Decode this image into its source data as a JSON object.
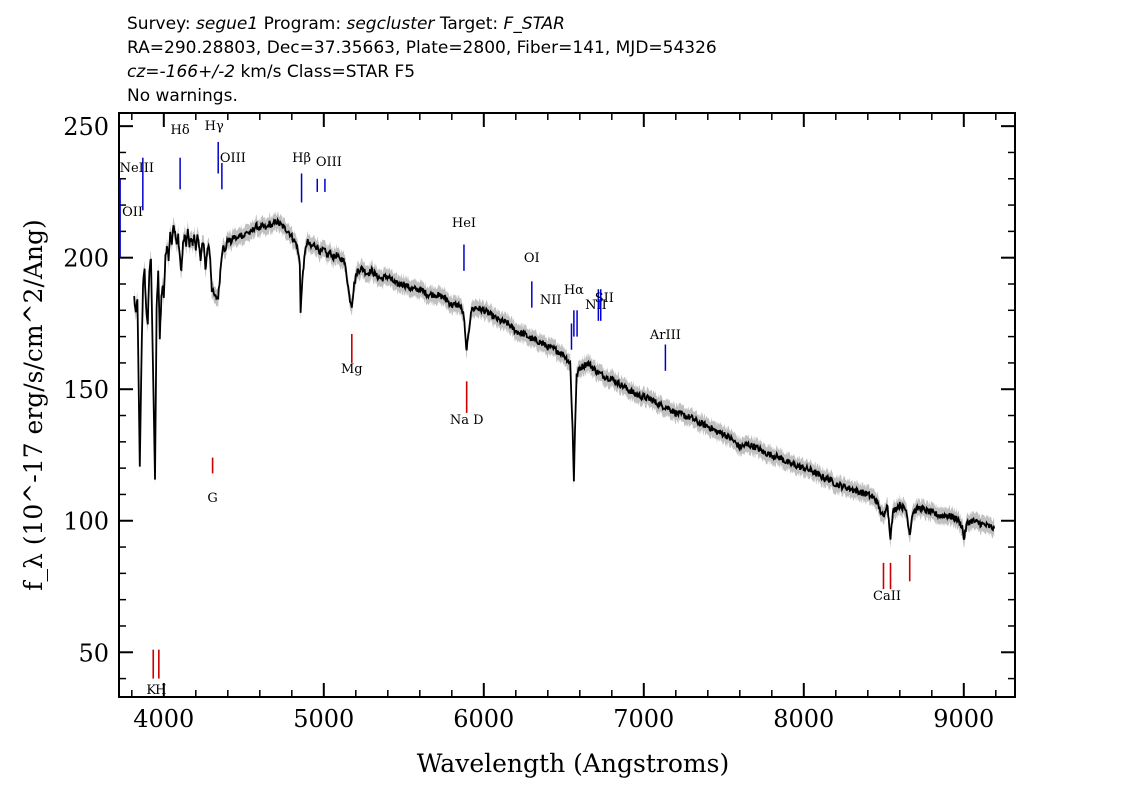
{
  "header": {
    "line1": {
      "survey_label": "Survey:",
      "survey": "segue1",
      "program_label": "Program:",
      "program": "segcluster",
      "target_label": "Target:",
      "target": "F_STAR"
    },
    "line2": "RA=290.28803, Dec=37.35663, Plate=2800, Fiber=141, MJD=54326",
    "line3": {
      "cz_label": "cz=",
      "cz_value": "-166+/-2",
      "unit_class": "km/s Class=STAR F5"
    },
    "line4": "No warnings."
  },
  "chart_data": {
    "type": "line",
    "xlabel": "Wavelength (Angstroms)",
    "ylabel": "f_λ (10^-17 erg/s/cm^2/Ang)",
    "xlim": [
      3720,
      9320
    ],
    "ylim": [
      33,
      255
    ],
    "x_ticks": [
      4000,
      5000,
      6000,
      7000,
      8000,
      9000
    ],
    "y_ticks": [
      50,
      100,
      150,
      200,
      250
    ],
    "x_tick_labels": [
      "4000",
      "5000",
      "6000",
      "7000",
      "8000",
      "9000"
    ],
    "y_tick_labels": [
      "50",
      "100",
      "150",
      "200",
      "250"
    ],
    "colors": {
      "spectrum": "#000000",
      "error_band": "#c0c0c0",
      "emission": "#0000cc",
      "absorption": "#cc0000"
    },
    "series": [
      {
        "points": [
          [
            3815,
            185
          ],
          [
            3825,
            178
          ],
          [
            3835,
            185
          ],
          [
            3850,
            120
          ],
          [
            3860,
            160
          ],
          [
            3870,
            190
          ],
          [
            3880,
            195
          ],
          [
            3890,
            180
          ],
          [
            3900,
            175
          ],
          [
            3910,
            195
          ],
          [
            3920,
            200
          ],
          [
            3935,
            150
          ],
          [
            3945,
            115
          ],
          [
            3955,
            180
          ],
          [
            3965,
            195
          ],
          [
            3975,
            170
          ],
          [
            3985,
            185
          ],
          [
            3995,
            190
          ],
          [
            4000,
            185
          ],
          [
            4010,
            200
          ],
          [
            4020,
            205
          ],
          [
            4030,
            200
          ],
          [
            4040,
            210
          ],
          [
            4050,
            205
          ],
          [
            4060,
            212
          ],
          [
            4070,
            210
          ],
          [
            4080,
            205
          ],
          [
            4090,
            208
          ],
          [
            4100,
            200
          ],
          [
            4110,
            195
          ],
          [
            4120,
            205
          ],
          [
            4130,
            208
          ],
          [
            4140,
            205
          ],
          [
            4150,
            210
          ],
          [
            4160,
            205
          ],
          [
            4170,
            208
          ],
          [
            4180,
            205
          ],
          [
            4190,
            208
          ],
          [
            4200,
            204
          ],
          [
            4210,
            208
          ],
          [
            4220,
            204
          ],
          [
            4230,
            200
          ],
          [
            4240,
            205
          ],
          [
            4250,
            205
          ],
          [
            4260,
            195
          ],
          [
            4270,
            202
          ],
          [
            4280,
            205
          ],
          [
            4290,
            200
          ],
          [
            4300,
            188
          ],
          [
            4320,
            185
          ],
          [
            4340,
            185
          ],
          [
            4350,
            192
          ],
          [
            4360,
            200
          ],
          [
            4370,
            205
          ],
          [
            4380,
            202
          ],
          [
            4400,
            207
          ],
          [
            4420,
            206
          ],
          [
            4440,
            208
          ],
          [
            4460,
            207
          ],
          [
            4480,
            209
          ],
          [
            4500,
            208
          ],
          [
            4520,
            210
          ],
          [
            4540,
            209
          ],
          [
            4560,
            211
          ],
          [
            4580,
            212
          ],
          [
            4600,
            211
          ],
          [
            4620,
            212
          ],
          [
            4640,
            211
          ],
          [
            4660,
            213
          ],
          [
            4680,
            212
          ],
          [
            4700,
            214
          ],
          [
            4720,
            213
          ],
          [
            4740,
            212
          ],
          [
            4760,
            211
          ],
          [
            4780,
            210
          ],
          [
            4800,
            208
          ],
          [
            4830,
            205
          ],
          [
            4850,
            198
          ],
          [
            4855,
            180
          ],
          [
            4870,
            195
          ],
          [
            4890,
            205
          ],
          [
            4900,
            206
          ],
          [
            4920,
            204
          ],
          [
            4940,
            205
          ],
          [
            4960,
            204
          ],
          [
            4980,
            202
          ],
          [
            5000,
            203
          ],
          [
            5020,
            201
          ],
          [
            5040,
            202
          ],
          [
            5060,
            200
          ],
          [
            5080,
            201
          ],
          [
            5100,
            199
          ],
          [
            5120,
            200
          ],
          [
            5140,
            195
          ],
          [
            5160,
            185
          ],
          [
            5175,
            182
          ],
          [
            5190,
            190
          ],
          [
            5210,
            195
          ],
          [
            5240,
            196
          ],
          [
            5270,
            194
          ],
          [
            5300,
            195
          ],
          [
            5330,
            193
          ],
          [
            5360,
            192
          ],
          [
            5400,
            193
          ],
          [
            5450,
            190
          ],
          [
            5500,
            190
          ],
          [
            5550,
            188
          ],
          [
            5600,
            188
          ],
          [
            5650,
            186
          ],
          [
            5700,
            186
          ],
          [
            5750,
            185
          ],
          [
            5800,
            182
          ],
          [
            5850,
            182
          ],
          [
            5875,
            178
          ],
          [
            5890,
            165
          ],
          [
            5900,
            168
          ],
          [
            5920,
            180
          ],
          [
            5950,
            181
          ],
          [
            6000,
            180
          ],
          [
            6050,
            178
          ],
          [
            6100,
            176
          ],
          [
            6150,
            175
          ],
          [
            6200,
            172
          ],
          [
            6250,
            171
          ],
          [
            6300,
            169
          ],
          [
            6350,
            168
          ],
          [
            6400,
            166
          ],
          [
            6450,
            165
          ],
          [
            6500,
            163
          ],
          [
            6540,
            160
          ],
          [
            6555,
            135
          ],
          [
            6563,
            115
          ],
          [
            6570,
            135
          ],
          [
            6580,
            155
          ],
          [
            6600,
            158
          ],
          [
            6650,
            160
          ],
          [
            6700,
            157
          ],
          [
            6750,
            155
          ],
          [
            6800,
            154
          ],
          [
            6850,
            152
          ],
          [
            6900,
            150
          ],
          [
            6950,
            148
          ],
          [
            7000,
            147
          ],
          [
            7050,
            146
          ],
          [
            7100,
            144
          ],
          [
            7150,
            143
          ],
          [
            7200,
            141
          ],
          [
            7250,
            140
          ],
          [
            7300,
            139
          ],
          [
            7350,
            137
          ],
          [
            7400,
            136
          ],
          [
            7450,
            134
          ],
          [
            7500,
            133
          ],
          [
            7550,
            131
          ],
          [
            7600,
            128
          ],
          [
            7650,
            129
          ],
          [
            7700,
            128
          ],
          [
            7750,
            126
          ],
          [
            7800,
            125
          ],
          [
            7850,
            124
          ],
          [
            7900,
            122
          ],
          [
            7950,
            121
          ],
          [
            8000,
            120
          ],
          [
            8050,
            119
          ],
          [
            8100,
            117
          ],
          [
            8150,
            116
          ],
          [
            8200,
            114
          ],
          [
            8250,
            113
          ],
          [
            8300,
            112
          ],
          [
            8350,
            111
          ],
          [
            8400,
            110
          ],
          [
            8450,
            108
          ],
          [
            8498,
            101
          ],
          [
            8520,
            107
          ],
          [
            8542,
            94
          ],
          [
            8560,
            104
          ],
          [
            8600,
            106
          ],
          [
            8640,
            104
          ],
          [
            8662,
            95
          ],
          [
            8680,
            103
          ],
          [
            8720,
            105
          ],
          [
            8760,
            104
          ],
          [
            8800,
            103
          ],
          [
            8850,
            102
          ],
          [
            8900,
            102
          ],
          [
            8950,
            101
          ],
          [
            8990,
            98
          ],
          [
            9000,
            93
          ],
          [
            9020,
            99
          ],
          [
            9050,
            100
          ],
          [
            9100,
            99
          ],
          [
            9150,
            98
          ],
          [
            9190,
            97
          ]
        ]
      }
    ],
    "features": {
      "Mg": 5175,
      "Na D": 5893
    },
    "line_labels": {
      "emission": [
        {
          "label": "OII",
          "x": 3727
        },
        {
          "label": "NeIII",
          "x": 3869
        },
        {
          "label": "Hδ",
          "x": 4102
        },
        {
          "label": "Hγ",
          "x": 4340
        },
        {
          "label": "OIII",
          "x": 4363
        },
        {
          "label": "Hβ",
          "x": 4861
        },
        {
          "label": "OIII",
          "x": 4959
        },
        {
          "label": "OIII",
          "x": 5007
        },
        {
          "label": "HeI",
          "x": 5876
        },
        {
          "label": "OI",
          "x": 6300
        },
        {
          "label": "NII",
          "x": 6548
        },
        {
          "label": "Hα",
          "x": 6563
        },
        {
          "label": "NII",
          "x": 6583
        },
        {
          "label": "SII",
          "x": 6716
        },
        {
          "label": "SII",
          "x": 6731
        },
        {
          "label": "ArIII",
          "x": 7135
        }
      ],
      "absorption": [
        {
          "label": "K",
          "x": 3934
        },
        {
          "label": "H",
          "x": 3969
        },
        {
          "label": "G",
          "x": 4305
        },
        {
          "label": "Mg",
          "x": 5175
        },
        {
          "label": "Na D",
          "x": 5893
        },
        {
          "label": "CaII",
          "x": 8498
        },
        {
          "label": "CaII",
          "x": 8542
        },
        {
          "label": "CaII",
          "x": 8662
        }
      ]
    }
  }
}
